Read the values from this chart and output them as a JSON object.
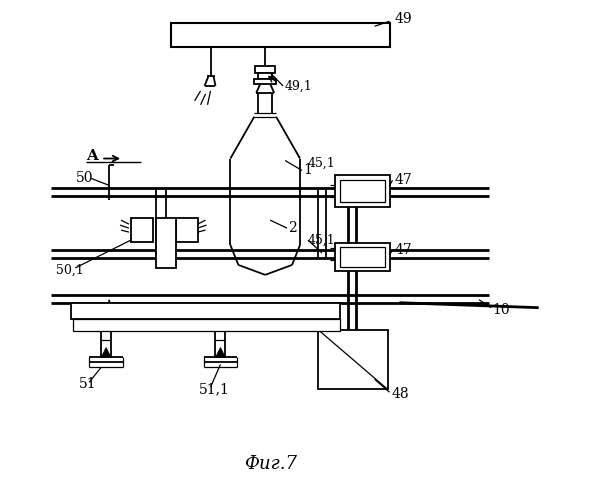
{
  "title": "Фиг.7",
  "bg_color": "#ffffff",
  "line_color": "#000000"
}
